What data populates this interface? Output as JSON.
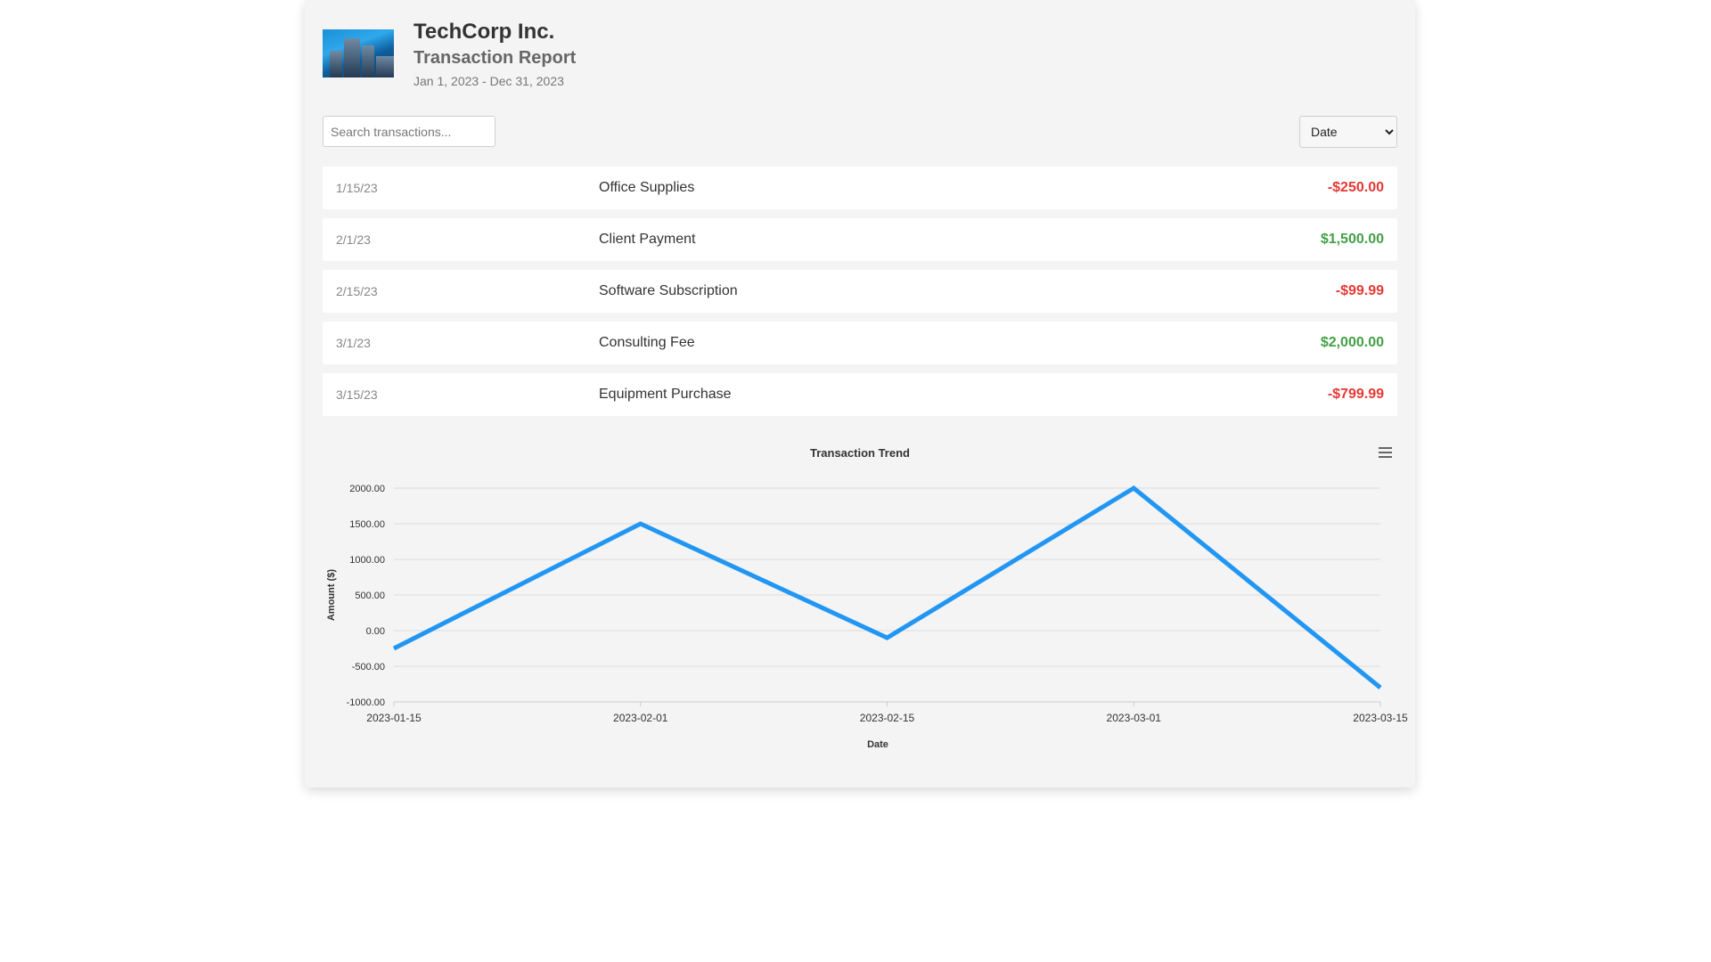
{
  "header": {
    "company": "TechCorp Inc.",
    "title": "Transaction Report",
    "date_range": "Jan 1, 2023 - Dec 31, 2023",
    "logo_icon": "city-skyline-photo"
  },
  "controls": {
    "search_placeholder": "Search transactions...",
    "search_value": "",
    "sort_selected": "Date",
    "sort_options": [
      "Date"
    ]
  },
  "transactions": [
    {
      "date": "1/15/23",
      "description": "Office Supplies",
      "amount": "-$250.00",
      "sign": "negative"
    },
    {
      "date": "2/1/23",
      "description": "Client Payment",
      "amount": "$1,500.00",
      "sign": "positive"
    },
    {
      "date": "2/15/23",
      "description": "Software Subscription",
      "amount": "-$99.99",
      "sign": "negative"
    },
    {
      "date": "3/1/23",
      "description": "Consulting Fee",
      "amount": "$2,000.00",
      "sign": "positive"
    },
    {
      "date": "3/15/23",
      "description": "Equipment Purchase",
      "amount": "-$799.99",
      "sign": "negative"
    }
  ],
  "colors": {
    "negative": "#e53935",
    "positive": "#43a047",
    "line": "#2196f3"
  },
  "chart_data": {
    "type": "line",
    "title": "Transaction Trend",
    "xlabel": "Date",
    "ylabel": "Amount ($)",
    "categories": [
      "2023-01-15",
      "2023-02-01",
      "2023-02-15",
      "2023-03-01",
      "2023-03-15"
    ],
    "series": [
      {
        "values": [
          -250,
          1500,
          -99.99,
          2000,
          -799.99
        ]
      }
    ],
    "y_ticks": [
      "2000.00",
      "1500.00",
      "1000.00",
      "500.00",
      "0.00",
      "-500.00",
      "-1000.00"
    ],
    "ylim": [
      -1000,
      2000
    ],
    "grid": true,
    "menu_icon": "hamburger-menu-icon"
  }
}
